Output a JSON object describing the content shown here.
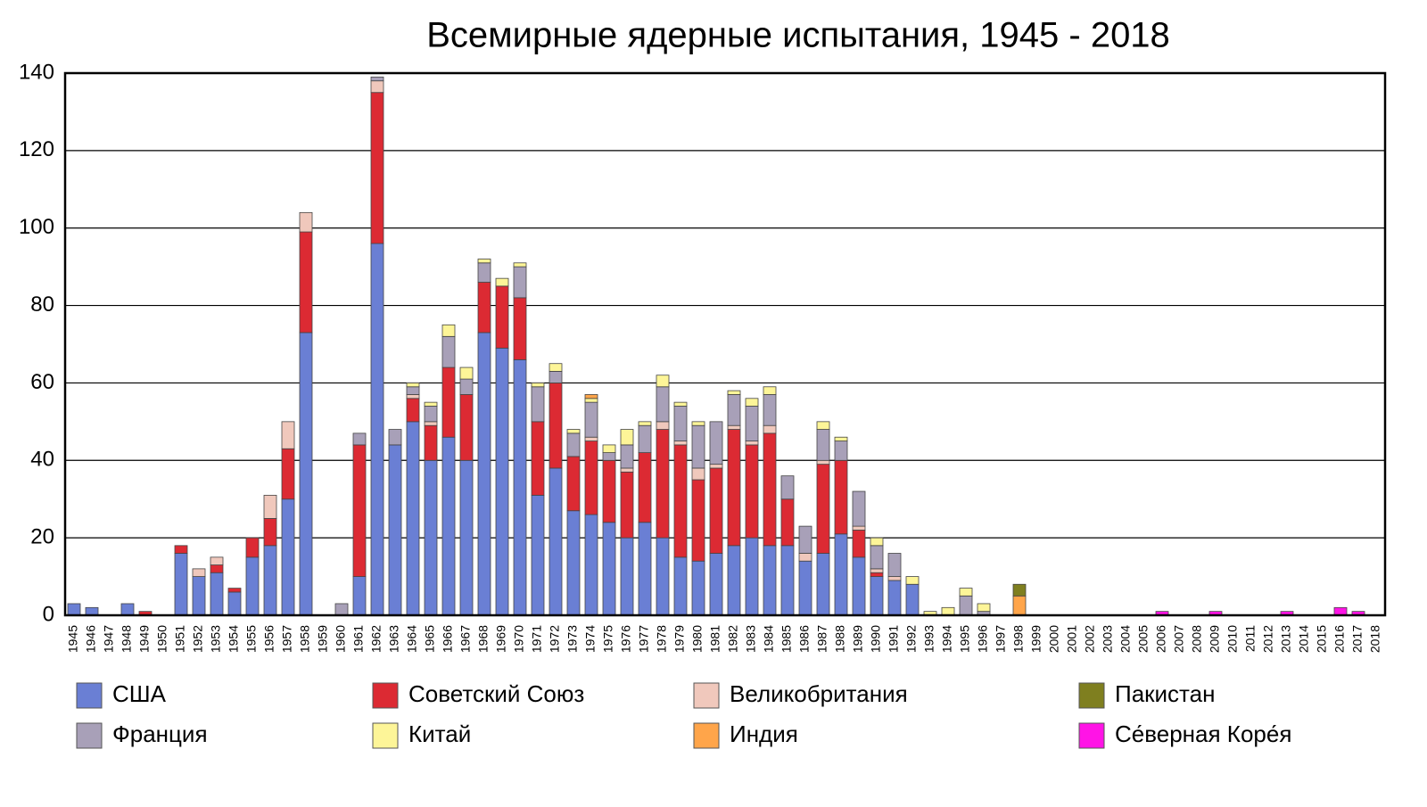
{
  "chart_data": {
    "type": "stacked_bar",
    "title": "Всемирные ядерные испытания, 1945 - 2018",
    "categories": [
      "1945",
      "1946",
      "1947",
      "1948",
      "1949",
      "1950",
      "1951",
      "1952",
      "1953",
      "1954",
      "1955",
      "1956",
      "1957",
      "1958",
      "1959",
      "1960",
      "1961",
      "1962",
      "1963",
      "1964",
      "1965",
      "1966",
      "1967",
      "1968",
      "1969",
      "1970",
      "1971",
      "1972",
      "1973",
      "1974",
      "1975",
      "1976",
      "1977",
      "1978",
      "1979",
      "1980",
      "1981",
      "1982",
      "1983",
      "1984",
      "1985",
      "1986",
      "1987",
      "1988",
      "1989",
      "1990",
      "1991",
      "1992",
      "1993",
      "1994",
      "1995",
      "1996",
      "1997",
      "1998",
      "1999",
      "2000",
      "2001",
      "2002",
      "2003",
      "2004",
      "2005",
      "2006",
      "2007",
      "2008",
      "2009",
      "2010",
      "2011",
      "2012",
      "2013",
      "2014",
      "2015",
      "2016",
      "2017",
      "2018"
    ],
    "series": [
      {
        "name": "США",
        "color": "#6a7fd4",
        "values": [
          3,
          2,
          0,
          3,
          0,
          0,
          16,
          10,
          11,
          6,
          15,
          18,
          30,
          73,
          0,
          0,
          10,
          96,
          44,
          50,
          40,
          46,
          40,
          73,
          69,
          66,
          31,
          38,
          27,
          26,
          24,
          20,
          24,
          20,
          15,
          14,
          16,
          18,
          20,
          18,
          18,
          14,
          16,
          21,
          15,
          10,
          9,
          8,
          0,
          0,
          0,
          0,
          0,
          0,
          0,
          0,
          0,
          0,
          0,
          0,
          0,
          0,
          0,
          0,
          0,
          0,
          0,
          0,
          0,
          0,
          0,
          0,
          0,
          0
        ]
      },
      {
        "name": "Советский Союз",
        "color": "#dc2a33",
        "values": [
          0,
          0,
          0,
          0,
          1,
          0,
          2,
          0,
          2,
          1,
          5,
          7,
          13,
          26,
          0,
          0,
          34,
          39,
          0,
          6,
          9,
          18,
          17,
          13,
          16,
          16,
          19,
          22,
          14,
          19,
          16,
          17,
          18,
          28,
          29,
          21,
          22,
          30,
          24,
          29,
          12,
          0,
          23,
          19,
          7,
          1,
          0,
          0,
          0,
          0,
          0,
          0,
          0,
          0,
          0,
          0,
          0,
          0,
          0,
          0,
          0,
          0,
          0,
          0,
          0,
          0,
          0,
          0,
          0,
          0,
          0,
          0,
          0,
          0
        ]
      },
      {
        "name": "Великобритания",
        "color": "#f0c8bc",
        "values": [
          0,
          0,
          0,
          0,
          0,
          0,
          0,
          2,
          2,
          0,
          0,
          6,
          7,
          5,
          0,
          0,
          0,
          3,
          0,
          1,
          1,
          0,
          0,
          0,
          0,
          0,
          0,
          0,
          0,
          1,
          0,
          1,
          0,
          2,
          1,
          3,
          1,
          1,
          1,
          2,
          0,
          2,
          1,
          0,
          1,
          1,
          1,
          0,
          0,
          0,
          0,
          0,
          0,
          0,
          0,
          0,
          0,
          0,
          0,
          0,
          0,
          0,
          0,
          0,
          0,
          0,
          0,
          0,
          0,
          0,
          0,
          0,
          0,
          0
        ]
      },
      {
        "name": "Франция",
        "color": "#a8a0b8",
        "values": [
          0,
          0,
          0,
          0,
          0,
          0,
          0,
          0,
          0,
          0,
          0,
          0,
          0,
          0,
          0,
          3,
          3,
          1,
          4,
          2,
          4,
          8,
          4,
          5,
          0,
          8,
          9,
          3,
          6,
          9,
          2,
          6,
          7,
          9,
          9,
          11,
          11,
          8,
          9,
          8,
          6,
          7,
          8,
          5,
          9,
          6,
          6,
          0,
          0,
          0,
          5,
          1,
          0,
          0,
          0,
          0,
          0,
          0,
          0,
          0,
          0,
          0,
          0,
          0,
          0,
          0,
          0,
          0,
          0,
          0,
          0,
          0,
          0,
          0
        ]
      },
      {
        "name": "Китай",
        "color": "#fdf598",
        "values": [
          0,
          0,
          0,
          0,
          0,
          0,
          0,
          0,
          0,
          0,
          0,
          0,
          0,
          0,
          0,
          0,
          0,
          0,
          0,
          1,
          1,
          3,
          3,
          1,
          2,
          1,
          1,
          2,
          1,
          1,
          2,
          4,
          1,
          3,
          1,
          1,
          0,
          1,
          2,
          2,
          0,
          0,
          2,
          1,
          0,
          2,
          0,
          2,
          1,
          2,
          2,
          2,
          0,
          0,
          0,
          0,
          0,
          0,
          0,
          0,
          0,
          0,
          0,
          0,
          0,
          0,
          0,
          0,
          0,
          0,
          0,
          0,
          0,
          0
        ]
      },
      {
        "name": "Индия",
        "color": "#ffa54a",
        "values": [
          0,
          0,
          0,
          0,
          0,
          0,
          0,
          0,
          0,
          0,
          0,
          0,
          0,
          0,
          0,
          0,
          0,
          0,
          0,
          0,
          0,
          0,
          0,
          0,
          0,
          0,
          0,
          0,
          0,
          1,
          0,
          0,
          0,
          0,
          0,
          0,
          0,
          0,
          0,
          0,
          0,
          0,
          0,
          0,
          0,
          0,
          0,
          0,
          0,
          0,
          0,
          0,
          0,
          5,
          0,
          0,
          0,
          0,
          0,
          0,
          0,
          0,
          0,
          0,
          0,
          0,
          0,
          0,
          0,
          0,
          0,
          0,
          0,
          0
        ]
      },
      {
        "name": "Пакистан",
        "color": "#7f7f1f",
        "values": [
          0,
          0,
          0,
          0,
          0,
          0,
          0,
          0,
          0,
          0,
          0,
          0,
          0,
          0,
          0,
          0,
          0,
          0,
          0,
          0,
          0,
          0,
          0,
          0,
          0,
          0,
          0,
          0,
          0,
          0,
          0,
          0,
          0,
          0,
          0,
          0,
          0,
          0,
          0,
          0,
          0,
          0,
          0,
          0,
          0,
          0,
          0,
          0,
          0,
          0,
          0,
          0,
          0,
          3,
          0,
          0,
          0,
          0,
          0,
          0,
          0,
          0,
          0,
          0,
          0,
          0,
          0,
          0,
          0,
          0,
          0,
          0,
          0,
          0
        ]
      },
      {
        "name": "Се́верная Коре́я",
        "color": "#ff14e6",
        "values": [
          0,
          0,
          0,
          0,
          0,
          0,
          0,
          0,
          0,
          0,
          0,
          0,
          0,
          0,
          0,
          0,
          0,
          0,
          0,
          0,
          0,
          0,
          0,
          0,
          0,
          0,
          0,
          0,
          0,
          0,
          0,
          0,
          0,
          0,
          0,
          0,
          0,
          0,
          0,
          0,
          0,
          0,
          0,
          0,
          0,
          0,
          0,
          0,
          0,
          0,
          0,
          0,
          0,
          0,
          0,
          0,
          0,
          0,
          0,
          0,
          0,
          1,
          0,
          0,
          1,
          0,
          0,
          0,
          1,
          0,
          0,
          2,
          1,
          0
        ]
      }
    ],
    "ylim": [
      0,
      140
    ],
    "yticks": [
      0,
      20,
      40,
      60,
      80,
      100,
      120,
      140
    ],
    "grid": true
  }
}
